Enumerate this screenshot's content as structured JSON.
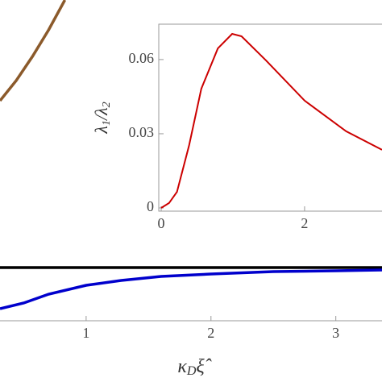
{
  "chart_data": [
    {
      "type": "line",
      "xlabel": {
        "main": "κ",
        "sub": "D",
        "rest": "ξ̂"
      },
      "xlim": [
        0.31,
        3.37
      ],
      "ylim": [
        -0.66,
        3.32
      ],
      "xticks": [
        1,
        2,
        3
      ],
      "series": [
        {
          "color": "#8b5a2b",
          "x": [
            0.31,
            0.44,
            0.57,
            0.7,
            0.83
          ],
          "values": [
            2.07,
            2.32,
            2.62,
            2.95,
            3.32
          ]
        },
        {
          "color": "#000000",
          "x": [
            0.31,
            3.37
          ],
          "values": [
            0,
            0
          ]
        },
        {
          "color": "#0000cc",
          "x": [
            0.31,
            0.5,
            0.7,
            1.0,
            1.28,
            1.6,
            2.0,
            2.5,
            3.0,
            3.37
          ],
          "values": [
            -0.51,
            -0.44,
            -0.33,
            -0.22,
            -0.16,
            -0.11,
            -0.08,
            -0.05,
            -0.04,
            -0.03
          ]
        }
      ]
    },
    {
      "type": "line",
      "ylabel": {
        "a": "λ",
        "a_sub": "1",
        "sep": "/λ",
        "b_sub": "2"
      },
      "xlim": [
        -0.034,
        3.08
      ],
      "ylim": [
        -0.0013,
        0.0743
      ],
      "xticks": [
        0,
        2
      ],
      "yticks": [
        0,
        0.03,
        0.06
      ],
      "series": [
        {
          "color": "#cc0000",
          "x": [
            0,
            0.11,
            0.22,
            0.39,
            0.56,
            0.79,
            0.99,
            1.12,
            1.46,
            2.0,
            2.58,
            3.08
          ],
          "values": [
            0,
            0.002,
            0.0065,
            0.0254,
            0.0482,
            0.0645,
            0.0704,
            0.0694,
            0.0597,
            0.0434,
            0.031,
            0.0235
          ]
        }
      ]
    }
  ]
}
